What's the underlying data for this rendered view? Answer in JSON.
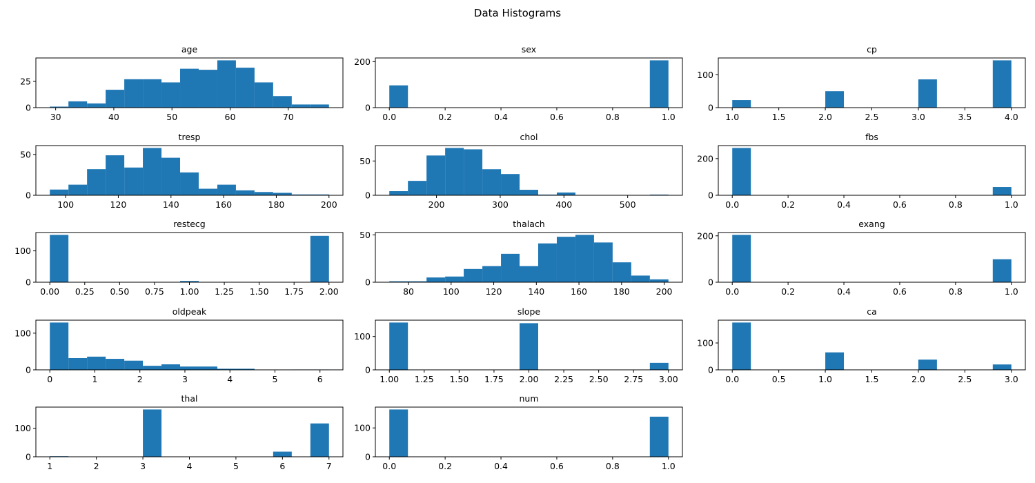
{
  "figure": {
    "title": "Data Histograms"
  },
  "style": {
    "bar_color": "#1f77b4",
    "axis_color": "#000000",
    "background": "#ffffff"
  },
  "chart_data": [
    {
      "type": "bar",
      "title": "age",
      "bin_edges": [
        29.0,
        32.2,
        35.4,
        38.6,
        41.8,
        45.0,
        48.2,
        51.4,
        54.6,
        57.8,
        61.0,
        64.2,
        67.4,
        70.6,
        73.8,
        77.0
      ],
      "values": [
        1,
        6,
        4,
        17,
        27,
        27,
        24,
        37,
        36,
        45,
        38,
        24,
        11,
        3,
        3
      ],
      "xlim": [
        26.6,
        79.4
      ],
      "ylim": [
        0,
        47.25
      ],
      "xticks": [
        30,
        40,
        50,
        60,
        70
      ],
      "yticks": [
        0,
        25
      ]
    },
    {
      "type": "bar",
      "title": "sex",
      "bin_edges": [
        0.0,
        0.0667,
        0.1333,
        0.2,
        0.2667,
        0.3333,
        0.4,
        0.4667,
        0.5333,
        0.6,
        0.6667,
        0.7333,
        0.8,
        0.8667,
        0.9333,
        1.0
      ],
      "values": [
        97,
        0,
        0,
        0,
        0,
        0,
        0,
        0,
        0,
        0,
        0,
        0,
        0,
        0,
        206
      ],
      "xlim": [
        -0.05,
        1.05
      ],
      "ylim": [
        0,
        216.3
      ],
      "xticks": [
        0.0,
        0.2,
        0.4,
        0.6,
        0.8,
        1.0
      ],
      "yticks": [
        0,
        200
      ]
    },
    {
      "type": "bar",
      "title": "cp",
      "bin_edges": [
        1.0,
        1.2,
        1.4,
        1.6,
        1.8,
        2.0,
        2.2,
        2.4,
        2.6,
        2.8,
        3.0,
        3.2,
        3.4,
        3.6,
        3.8,
        4.0
      ],
      "values": [
        23,
        0,
        0,
        0,
        0,
        50,
        0,
        0,
        0,
        0,
        86,
        0,
        0,
        0,
        144
      ],
      "xlim": [
        0.85,
        4.15
      ],
      "ylim": [
        0,
        151.2
      ],
      "xticks": [
        1.0,
        1.5,
        2.0,
        2.5,
        3.0,
        3.5,
        4.0
      ],
      "yticks": [
        0,
        100
      ]
    },
    {
      "type": "bar",
      "title": "tresp",
      "bin_edges": [
        94.0,
        101.07,
        108.13,
        115.2,
        122.27,
        129.33,
        136.4,
        143.47,
        150.53,
        157.6,
        164.67,
        171.73,
        178.8,
        185.87,
        192.93,
        200.0
      ],
      "values": [
        7,
        13,
        32,
        49,
        34,
        58,
        46,
        28,
        8,
        13,
        6,
        4,
        3,
        1,
        1
      ],
      "xlim": [
        88.7,
        205.3
      ],
      "ylim": [
        0,
        60.9
      ],
      "xticks": [
        100,
        120,
        140,
        160,
        180,
        200
      ],
      "yticks": [
        0,
        50
      ]
    },
    {
      "type": "bar",
      "title": "chol",
      "bin_edges": [
        126.0,
        155.2,
        184.4,
        213.6,
        242.8,
        272.0,
        301.2,
        330.4,
        359.6,
        388.8,
        418.0,
        447.2,
        476.4,
        505.6,
        534.8,
        564.0
      ],
      "values": [
        6,
        21,
        58,
        69,
        67,
        38,
        31,
        8,
        1,
        4,
        0,
        0,
        0,
        0,
        1
      ],
      "xlim": [
        104.1,
        585.9
      ],
      "ylim": [
        0,
        72.45
      ],
      "xticks": [
        200,
        300,
        400,
        500
      ],
      "yticks": [
        0,
        50
      ]
    },
    {
      "type": "bar",
      "title": "fbs",
      "bin_edges": [
        0.0,
        0.0667,
        0.1333,
        0.2,
        0.2667,
        0.3333,
        0.4,
        0.4667,
        0.5333,
        0.6,
        0.6667,
        0.7333,
        0.8,
        0.8667,
        0.9333,
        1.0
      ],
      "values": [
        258,
        0,
        0,
        0,
        0,
        0,
        0,
        0,
        0,
        0,
        0,
        0,
        0,
        0,
        45
      ],
      "xlim": [
        -0.05,
        1.05
      ],
      "ylim": [
        0,
        270.9
      ],
      "xticks": [
        0.0,
        0.2,
        0.4,
        0.6,
        0.8,
        1.0
      ],
      "yticks": [
        0,
        200
      ]
    },
    {
      "type": "bar",
      "title": "restecg",
      "bin_edges": [
        0.0,
        0.1333,
        0.2667,
        0.4,
        0.5333,
        0.6667,
        0.8,
        0.9333,
        1.0667,
        1.2,
        1.3333,
        1.4667,
        1.6,
        1.7333,
        1.8667,
        2.0
      ],
      "values": [
        151,
        0,
        0,
        0,
        0,
        0,
        0,
        4,
        0,
        0,
        0,
        0,
        0,
        0,
        148
      ],
      "xlim": [
        -0.1,
        2.1
      ],
      "ylim": [
        0,
        158.55
      ],
      "xticks": [
        0.0,
        0.25,
        0.5,
        0.75,
        1.0,
        1.25,
        1.5,
        1.75,
        2.0
      ],
      "yticks": [
        0,
        100
      ]
    },
    {
      "type": "bar",
      "title": "thalach",
      "bin_edges": [
        71.0,
        79.73,
        88.47,
        97.2,
        105.93,
        114.67,
        123.4,
        132.13,
        140.87,
        149.6,
        158.33,
        167.07,
        175.8,
        184.53,
        193.27,
        202.0
      ],
      "values": [
        1,
        1,
        5,
        6,
        14,
        17,
        30,
        17,
        41,
        48,
        50,
        42,
        21,
        7,
        3
      ],
      "xlim": [
        64.45,
        208.55
      ],
      "ylim": [
        0,
        52.5
      ],
      "xticks": [
        80,
        100,
        120,
        140,
        160,
        180,
        200
      ],
      "yticks": [
        0,
        50
      ]
    },
    {
      "type": "bar",
      "title": "exang",
      "bin_edges": [
        0.0,
        0.0667,
        0.1333,
        0.2,
        0.2667,
        0.3333,
        0.4,
        0.4667,
        0.5333,
        0.6,
        0.6667,
        0.7333,
        0.8,
        0.8667,
        0.9333,
        1.0
      ],
      "values": [
        204,
        0,
        0,
        0,
        0,
        0,
        0,
        0,
        0,
        0,
        0,
        0,
        0,
        0,
        99
      ],
      "xlim": [
        -0.05,
        1.05
      ],
      "ylim": [
        0,
        214.2
      ],
      "xticks": [
        0.0,
        0.2,
        0.4,
        0.6,
        0.8,
        1.0
      ],
      "yticks": [
        0,
        200
      ]
    },
    {
      "type": "bar",
      "title": "oldpeak",
      "bin_edges": [
        0.0,
        0.4133,
        0.8267,
        1.24,
        1.6533,
        2.0667,
        2.48,
        2.8933,
        3.3067,
        3.72,
        4.1333,
        4.5467,
        4.96,
        5.3733,
        5.7867,
        6.2
      ],
      "values": [
        129,
        32,
        36,
        30,
        25,
        11,
        15,
        9,
        9,
        3,
        3,
        0,
        0,
        1,
        1
      ],
      "xlim": [
        -0.31,
        6.51
      ],
      "ylim": [
        0,
        135.45
      ],
      "xticks": [
        0,
        1,
        2,
        3,
        4,
        5,
        6
      ],
      "yticks": [
        0,
        100
      ]
    },
    {
      "type": "bar",
      "title": "slope",
      "bin_edges": [
        1.0,
        1.1333,
        1.2667,
        1.4,
        1.5333,
        1.6667,
        1.8,
        1.9333,
        2.0667,
        2.2,
        2.3333,
        2.4667,
        2.6,
        2.7333,
        2.8667,
        3.0
      ],
      "values": [
        142,
        0,
        0,
        0,
        0,
        0,
        0,
        140,
        0,
        0,
        0,
        0,
        0,
        0,
        21
      ],
      "xlim": [
        0.9,
        3.1
      ],
      "ylim": [
        0,
        149.1
      ],
      "xticks": [
        1.0,
        1.25,
        1.5,
        1.75,
        2.0,
        2.25,
        2.5,
        2.75,
        3.0
      ],
      "yticks": [
        0,
        100
      ]
    },
    {
      "type": "bar",
      "title": "ca",
      "bin_edges": [
        0.0,
        0.2,
        0.4,
        0.6,
        0.8,
        1.0,
        1.2,
        1.4,
        1.6,
        1.8,
        2.0,
        2.2,
        2.4,
        2.6,
        2.8,
        3.0
      ],
      "values": [
        176,
        0,
        0,
        0,
        0,
        65,
        0,
        0,
        0,
        0,
        38,
        0,
        0,
        0,
        20
      ],
      "xlim": [
        -0.15,
        3.15
      ],
      "ylim": [
        0,
        184.8
      ],
      "xticks": [
        0.0,
        0.5,
        1.0,
        1.5,
        2.0,
        2.5,
        3.0
      ],
      "yticks": [
        0,
        100
      ]
    },
    {
      "type": "bar",
      "title": "thal",
      "bin_edges": [
        1.0,
        1.4,
        1.8,
        2.2,
        2.6,
        3.0,
        3.4,
        3.8,
        4.2,
        4.6,
        5.0,
        5.4,
        5.8,
        6.2,
        6.6,
        7.0
      ],
      "values": [
        2,
        0,
        0,
        0,
        0,
        166,
        0,
        0,
        0,
        0,
        0,
        0,
        18,
        0,
        117
      ],
      "xlim": [
        0.7,
        7.3
      ],
      "ylim": [
        0,
        174.3
      ],
      "xticks": [
        1,
        2,
        3,
        4,
        5,
        6,
        7
      ],
      "yticks": [
        0,
        100
      ]
    },
    {
      "type": "bar",
      "title": "num",
      "bin_edges": [
        0.0,
        0.0667,
        0.1333,
        0.2,
        0.2667,
        0.3333,
        0.4,
        0.4667,
        0.5333,
        0.6,
        0.6667,
        0.7333,
        0.8,
        0.8667,
        0.9333,
        1.0
      ],
      "values": [
        164,
        0,
        0,
        0,
        0,
        0,
        0,
        0,
        0,
        0,
        0,
        0,
        0,
        0,
        139
      ],
      "xlim": [
        -0.05,
        1.05
      ],
      "ylim": [
        0,
        172.2
      ],
      "xticks": [
        0.0,
        0.2,
        0.4,
        0.6,
        0.8,
        1.0
      ],
      "yticks": [
        0,
        100
      ]
    }
  ]
}
